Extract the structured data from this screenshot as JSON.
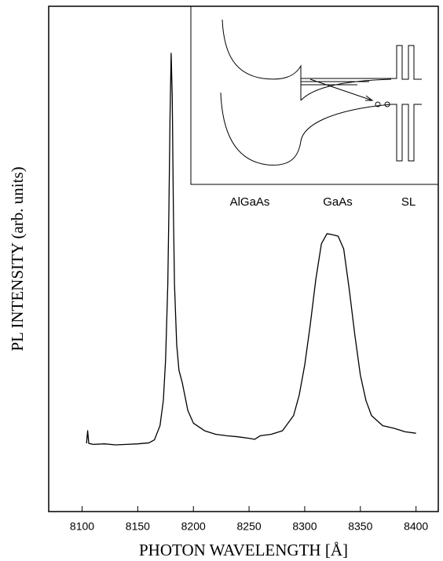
{
  "chart_data": {
    "type": "line",
    "xlabel": "PHOTON WAVELENGTH [Å]",
    "ylabel": "PL INTENSITY (arb. units)",
    "x": [
      8104,
      8105,
      8106,
      8110,
      8120,
      8130,
      8140,
      8150,
      8160,
      8165,
      8170,
      8173,
      8175,
      8177,
      8178,
      8179,
      8180,
      8181,
      8182,
      8183,
      8185,
      8187,
      8190,
      8195,
      8200,
      8210,
      8220,
      8230,
      8240,
      8250,
      8255,
      8260,
      8270,
      8280,
      8290,
      8295,
      8300,
      8305,
      8310,
      8315,
      8320,
      8325,
      8330,
      8335,
      8340,
      8345,
      8350,
      8355,
      8360,
      8370,
      8380,
      8390,
      8400
    ],
    "series": [
      {
        "color": "#000000",
        "values": [
          13.5,
          16,
          13.5,
          13.3,
          13.4,
          13.2,
          13.3,
          13.4,
          13.6,
          14.2,
          17,
          22,
          30,
          45,
          60,
          78,
          90.7,
          82,
          60,
          45,
          33,
          28,
          25.5,
          20,
          17.5,
          16,
          15.3,
          15,
          14.8,
          14.5,
          14.3,
          15,
          15.3,
          16,
          19,
          23,
          29,
          37,
          46,
          53,
          55,
          54.8,
          54.5,
          52,
          44,
          35,
          27,
          22,
          19,
          17,
          16.5,
          15.8,
          15.5
        ]
      }
    ],
    "xlim": [
      8070,
      8420
    ],
    "ylim": [
      0,
      100
    ],
    "xticks": [
      8100,
      8150,
      8200,
      8250,
      8300,
      8350,
      8400
    ],
    "annotations": [
      "AlGaAs",
      "GaAs",
      "SL"
    ]
  }
}
